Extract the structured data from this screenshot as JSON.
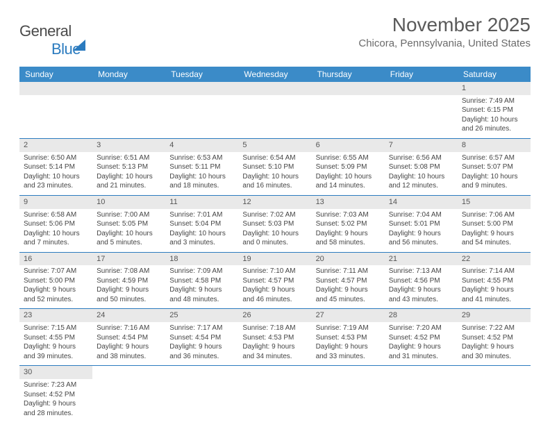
{
  "logo": {
    "prefix": "General",
    "suffix": "Blue"
  },
  "title": "November 2025",
  "location": "Chicora, Pennsylvania, United States",
  "colors": {
    "header_bg": "#3b8bc8",
    "header_text": "#ffffff",
    "daynum_bg": "#e9e9e9",
    "rule": "#2b7bbf",
    "logo_accent": "#2b7bbf"
  },
  "weekdays": [
    "Sunday",
    "Monday",
    "Tuesday",
    "Wednesday",
    "Thursday",
    "Friday",
    "Saturday"
  ],
  "weeks": [
    [
      null,
      null,
      null,
      null,
      null,
      null,
      {
        "d": "1",
        "sr": "7:49 AM",
        "ss": "6:15 PM",
        "dl": "10 hours and 26 minutes."
      }
    ],
    [
      {
        "d": "2",
        "sr": "6:50 AM",
        "ss": "5:14 PM",
        "dl": "10 hours and 23 minutes."
      },
      {
        "d": "3",
        "sr": "6:51 AM",
        "ss": "5:13 PM",
        "dl": "10 hours and 21 minutes."
      },
      {
        "d": "4",
        "sr": "6:53 AM",
        "ss": "5:11 PM",
        "dl": "10 hours and 18 minutes."
      },
      {
        "d": "5",
        "sr": "6:54 AM",
        "ss": "5:10 PM",
        "dl": "10 hours and 16 minutes."
      },
      {
        "d": "6",
        "sr": "6:55 AM",
        "ss": "5:09 PM",
        "dl": "10 hours and 14 minutes."
      },
      {
        "d": "7",
        "sr": "6:56 AM",
        "ss": "5:08 PM",
        "dl": "10 hours and 12 minutes."
      },
      {
        "d": "8",
        "sr": "6:57 AM",
        "ss": "5:07 PM",
        "dl": "10 hours and 9 minutes."
      }
    ],
    [
      {
        "d": "9",
        "sr": "6:58 AM",
        "ss": "5:06 PM",
        "dl": "10 hours and 7 minutes."
      },
      {
        "d": "10",
        "sr": "7:00 AM",
        "ss": "5:05 PM",
        "dl": "10 hours and 5 minutes."
      },
      {
        "d": "11",
        "sr": "7:01 AM",
        "ss": "5:04 PM",
        "dl": "10 hours and 3 minutes."
      },
      {
        "d": "12",
        "sr": "7:02 AM",
        "ss": "5:03 PM",
        "dl": "10 hours and 0 minutes."
      },
      {
        "d": "13",
        "sr": "7:03 AM",
        "ss": "5:02 PM",
        "dl": "9 hours and 58 minutes."
      },
      {
        "d": "14",
        "sr": "7:04 AM",
        "ss": "5:01 PM",
        "dl": "9 hours and 56 minutes."
      },
      {
        "d": "15",
        "sr": "7:06 AM",
        "ss": "5:00 PM",
        "dl": "9 hours and 54 minutes."
      }
    ],
    [
      {
        "d": "16",
        "sr": "7:07 AM",
        "ss": "5:00 PM",
        "dl": "9 hours and 52 minutes."
      },
      {
        "d": "17",
        "sr": "7:08 AM",
        "ss": "4:59 PM",
        "dl": "9 hours and 50 minutes."
      },
      {
        "d": "18",
        "sr": "7:09 AM",
        "ss": "4:58 PM",
        "dl": "9 hours and 48 minutes."
      },
      {
        "d": "19",
        "sr": "7:10 AM",
        "ss": "4:57 PM",
        "dl": "9 hours and 46 minutes."
      },
      {
        "d": "20",
        "sr": "7:11 AM",
        "ss": "4:57 PM",
        "dl": "9 hours and 45 minutes."
      },
      {
        "d": "21",
        "sr": "7:13 AM",
        "ss": "4:56 PM",
        "dl": "9 hours and 43 minutes."
      },
      {
        "d": "22",
        "sr": "7:14 AM",
        "ss": "4:55 PM",
        "dl": "9 hours and 41 minutes."
      }
    ],
    [
      {
        "d": "23",
        "sr": "7:15 AM",
        "ss": "4:55 PM",
        "dl": "9 hours and 39 minutes."
      },
      {
        "d": "24",
        "sr": "7:16 AM",
        "ss": "4:54 PM",
        "dl": "9 hours and 38 minutes."
      },
      {
        "d": "25",
        "sr": "7:17 AM",
        "ss": "4:54 PM",
        "dl": "9 hours and 36 minutes."
      },
      {
        "d": "26",
        "sr": "7:18 AM",
        "ss": "4:53 PM",
        "dl": "9 hours and 34 minutes."
      },
      {
        "d": "27",
        "sr": "7:19 AM",
        "ss": "4:53 PM",
        "dl": "9 hours and 33 minutes."
      },
      {
        "d": "28",
        "sr": "7:20 AM",
        "ss": "4:52 PM",
        "dl": "9 hours and 31 minutes."
      },
      {
        "d": "29",
        "sr": "7:22 AM",
        "ss": "4:52 PM",
        "dl": "9 hours and 30 minutes."
      }
    ],
    [
      {
        "d": "30",
        "sr": "7:23 AM",
        "ss": "4:52 PM",
        "dl": "9 hours and 28 minutes."
      },
      null,
      null,
      null,
      null,
      null,
      null
    ]
  ],
  "labels": {
    "sunrise": "Sunrise: ",
    "sunset": "Sunset: ",
    "daylight": "Daylight: "
  }
}
